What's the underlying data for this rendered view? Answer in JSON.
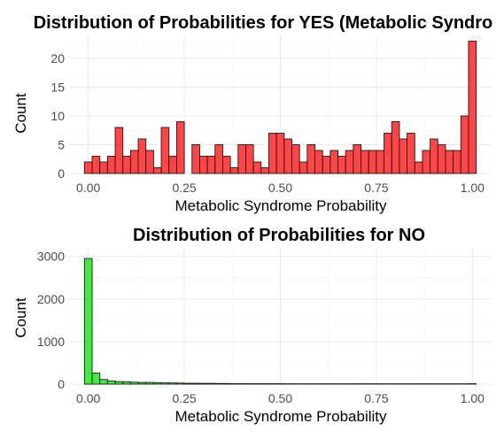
{
  "chart_data": [
    {
      "type": "bar",
      "title": "Distribution of Probabilities for YES (Metabolic Syndro",
      "xlabel": "Metabolic Syndrome Probability",
      "ylabel": "Count",
      "xlim": [
        -0.05,
        1.05
      ],
      "ylim": [
        0,
        24
      ],
      "x_ticks": [
        "0.00",
        "0.25",
        "0.50",
        "0.75",
        "1.00"
      ],
      "y_ticks": [
        "0",
        "5",
        "10",
        "15",
        "20"
      ],
      "bin_start": 0.0,
      "bin_width": 0.02,
      "values": [
        2,
        3,
        2,
        3,
        8,
        3,
        4,
        6,
        4,
        1,
        8,
        3,
        9,
        0,
        5,
        3,
        3,
        5,
        3,
        1,
        5,
        5,
        2,
        1,
        7,
        7,
        6,
        5,
        2,
        5,
        4,
        3,
        4,
        3,
        4,
        5,
        4,
        4,
        4,
        7,
        9,
        6,
        7,
        2,
        4,
        6,
        5,
        4,
        4,
        10,
        23
      ],
      "fill": "#ff4545",
      "stroke": "#1a1a1a"
    },
    {
      "type": "bar",
      "title": "Distribution of Probabilities for NO",
      "xlabel": "Metabolic Syndrome Probability",
      "ylabel": "Count",
      "xlim": [
        -0.05,
        1.05
      ],
      "ylim": [
        0,
        3200
      ],
      "x_ticks": [
        "0.00",
        "0.25",
        "0.50",
        "0.75",
        "1.00"
      ],
      "y_ticks": [
        "0",
        "1000",
        "2000",
        "3000"
      ],
      "bin_start": 0.0,
      "bin_width": 0.02,
      "values": [
        2950,
        260,
        110,
        75,
        60,
        55,
        45,
        40,
        40,
        35,
        30,
        28,
        25,
        20,
        20,
        18,
        18,
        15,
        15,
        12,
        12,
        10,
        10,
        10,
        10,
        10,
        8,
        8,
        8,
        8,
        8,
        8,
        8,
        8,
        8,
        8,
        8,
        8,
        8,
        8,
        8,
        8,
        8,
        8,
        8,
        8,
        8,
        8,
        8,
        8,
        10
      ],
      "fill": "#43ea43",
      "stroke": "#1a1a1a"
    }
  ]
}
